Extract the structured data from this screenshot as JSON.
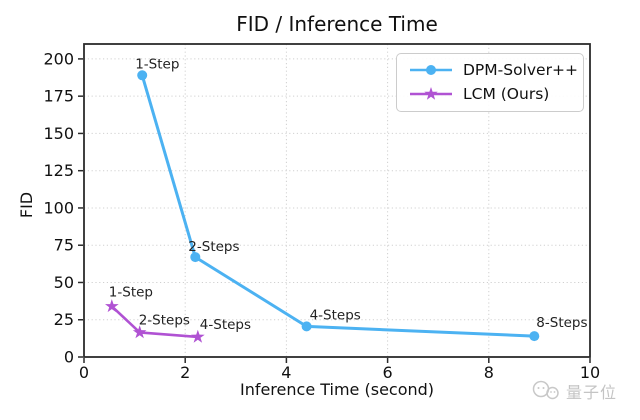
{
  "watermark": {
    "text": "量子位"
  },
  "chart_data": {
    "type": "line",
    "title": "FID / Inference Time",
    "xlabel": "Inference Time (second)",
    "ylabel": "FID",
    "xlim": [
      0,
      10
    ],
    "ylim": [
      0,
      210
    ],
    "xticks": [
      0,
      2,
      4,
      6,
      8,
      10
    ],
    "yticks": [
      0,
      25,
      50,
      75,
      100,
      125,
      150,
      175,
      200
    ],
    "grid": true,
    "grid_style": "dotted",
    "grid_color": "#d0d0d0",
    "axis_color": "#2b2b2b",
    "legend_position": "upper right",
    "series": [
      {
        "name": "DPM-Solver++",
        "color": "#4cb2f2",
        "marker": "circle",
        "line_width": 3,
        "points": [
          [
            1.15,
            189
          ],
          [
            2.2,
            67
          ],
          [
            4.4,
            20.5
          ],
          [
            8.9,
            14
          ]
        ],
        "point_labels": [
          {
            "text": "1-Step",
            "dx": -7,
            "dy": -7
          },
          {
            "text": "2-Steps",
            "dx": -7,
            "dy": -6
          },
          {
            "text": "4-Steps",
            "dx": 3,
            "dy": -7
          },
          {
            "text": "8-Steps",
            "dx": 2,
            "dy": -9
          }
        ]
      },
      {
        "name": "LCM (Ours)",
        "color": "#b052d3",
        "marker": "star",
        "line_width": 2.6,
        "points": [
          [
            0.55,
            34
          ],
          [
            1.1,
            16.5
          ],
          [
            2.25,
            13.5
          ]
        ],
        "point_labels": [
          {
            "text": "1-Step",
            "dx": -3,
            "dy": -10
          },
          {
            "text": "2-Steps",
            "dx": -1,
            "dy": -8
          },
          {
            "text": "4-Steps",
            "dx": 2,
            "dy": -8
          }
        ]
      }
    ]
  }
}
